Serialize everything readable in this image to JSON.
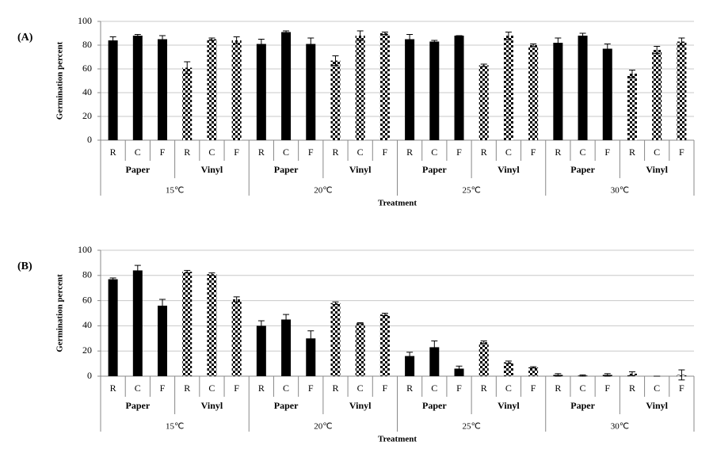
{
  "chart_data": [
    {
      "type": "bar",
      "label": "(A)",
      "y_label": "Germination percent",
      "x_label": "Treatment",
      "categories": [
        "R",
        "C",
        "F",
        "R",
        "C",
        "F",
        "R",
        "C",
        "F",
        "R",
        "C",
        "F",
        "R",
        "C",
        "F",
        "R",
        "C",
        "F",
        "R",
        "C",
        "F",
        "R",
        "C",
        "F"
      ],
      "groups": [
        "Paper",
        "Vinyl",
        "Paper",
        "Vinyl",
        "Paper",
        "Vinyl",
        "Paper",
        "Vinyl"
      ],
      "supergroups": [
        "15℃",
        "20℃",
        "25℃",
        "30℃"
      ],
      "group_patterns": [
        "solid",
        "checkered",
        "solid",
        "checkered",
        "solid",
        "checkered",
        "solid",
        "checkered"
      ],
      "color": "#000000",
      "values": [
        84,
        88,
        85,
        61,
        85,
        84,
        81,
        91,
        81,
        67,
        88,
        90,
        85,
        83,
        88,
        63,
        88,
        80,
        82,
        88,
        77,
        56,
        76,
        83
      ],
      "errors": [
        3,
        1,
        3,
        5,
        1,
        3,
        4,
        1,
        5,
        4,
        4,
        1,
        4,
        1,
        0,
        1,
        3,
        1,
        4,
        2,
        4,
        3,
        3,
        3
      ],
      "ylim": [
        0,
        100
      ],
      "yticks": [
        0,
        20,
        40,
        60,
        80,
        100
      ],
      "grid": true
    },
    {
      "type": "bar",
      "label": "(B)",
      "y_label": "Germination percent",
      "x_label": "Treatment",
      "categories": [
        "R",
        "C",
        "F",
        "R",
        "C",
        "F",
        "R",
        "C",
        "F",
        "R",
        "C",
        "F",
        "R",
        "C",
        "F",
        "R",
        "C",
        "F",
        "R",
        "C",
        "F",
        "R",
        "C",
        "F"
      ],
      "groups": [
        "Paper",
        "Vinyl",
        "Paper",
        "Vinyl",
        "Paper",
        "Vinyl",
        "Paper",
        "Vinyl"
      ],
      "supergroups": [
        "15℃",
        "20℃",
        "25℃",
        "30℃"
      ],
      "group_patterns": [
        "solid",
        "checkered",
        "solid",
        "checkered",
        "solid",
        "checkered",
        "solid",
        "checkered"
      ],
      "color": "#000000",
      "values": [
        77,
        84,
        56,
        83,
        81,
        61,
        40,
        45,
        30,
        58,
        42,
        49,
        16,
        23,
        6,
        27,
        11,
        7,
        1,
        0.5,
        1,
        2,
        0,
        1
      ],
      "errors": [
        1,
        4,
        5,
        1,
        1,
        2,
        4,
        4,
        6,
        1,
        0.5,
        1,
        3,
        5,
        2,
        1,
        1,
        0.5,
        1,
        0.5,
        1,
        1.5,
        0,
        4
      ],
      "ylim": [
        0,
        100
      ],
      "yticks": [
        0,
        20,
        40,
        60,
        80,
        100
      ],
      "grid": true
    }
  ]
}
